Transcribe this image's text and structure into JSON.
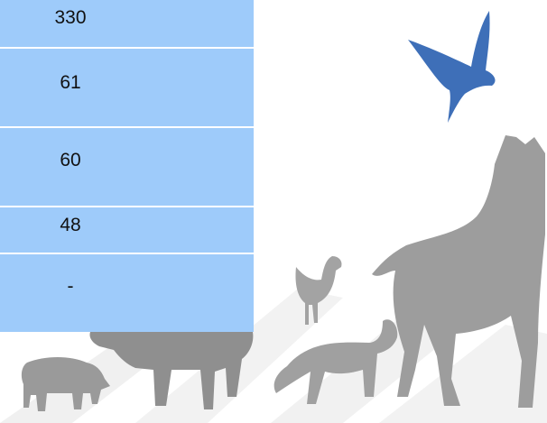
{
  "table": {
    "rows": [
      [
        "330"
      ],
      [
        "61"
      ],
      [
        "60"
      ],
      [
        "48"
      ],
      [
        "-"
      ]
    ]
  }
}
